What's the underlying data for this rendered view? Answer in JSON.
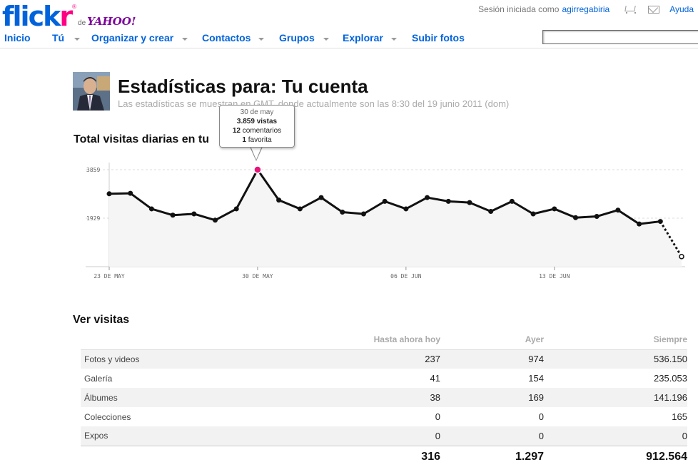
{
  "header": {
    "logo_flickr_f": "flick",
    "logo_flickr_r": "r",
    "logo_reg": "®",
    "logo_de": "de",
    "logo_yahoo": "YAHOO!",
    "session_text": "Sesión iniciada como",
    "username": "agirregabiria",
    "help": "Ayuda",
    "cart_icon": "cart-icon",
    "mail_icon": "mail-icon"
  },
  "nav": {
    "items": [
      {
        "label": "Inicio",
        "dropdown": false
      },
      {
        "label": "Tú",
        "dropdown": true
      },
      {
        "label": "Organizar y crear",
        "dropdown": true
      },
      {
        "label": "Contactos",
        "dropdown": true
      },
      {
        "label": "Grupos",
        "dropdown": true
      },
      {
        "label": "Explorar",
        "dropdown": true
      },
      {
        "label": "Subir fotos",
        "dropdown": false
      }
    ],
    "search_value": ""
  },
  "page": {
    "title": "Estadísticas para: Tu cuenta",
    "subtitle": "Las estadísticas se muestran en GMT, donde actualmente son las 8:30 del 19 junio 2011 (dom)",
    "chart_section_title": "Total visitas diarias en tu",
    "table_section_title": "Ver visitas"
  },
  "tooltip": {
    "date": "30 de may",
    "views_num": "3.859",
    "views_label": "vistas",
    "comments_num": "12",
    "comments_label": "comentarios",
    "favs_num": "1",
    "favs_label": "favorita"
  },
  "chart_data": {
    "type": "line",
    "x": [
      "23 may",
      "24 may",
      "25 may",
      "26 may",
      "27 may",
      "28 may",
      "29 may",
      "30 may",
      "31 may",
      "1 jun",
      "2 jun",
      "3 jun",
      "4 jun",
      "5 jun",
      "6 jun",
      "7 jun",
      "8 jun",
      "9 jun",
      "10 jun",
      "11 jun",
      "12 jun",
      "13 jun",
      "14 jun",
      "15 jun",
      "16 jun",
      "17 jun",
      "18 jun",
      "19 jun"
    ],
    "values": [
      2900,
      2920,
      2300,
      2050,
      2100,
      1850,
      2300,
      3859,
      2650,
      2300,
      2750,
      2170,
      2100,
      2600,
      2300,
      2750,
      2600,
      2550,
      2200,
      2600,
      2100,
      2300,
      1950,
      2000,
      2250,
      1700,
      1800,
      400
    ],
    "y_ticks": [
      "1929",
      "3859"
    ],
    "x_tick_labels": [
      "23 DE MAY",
      "30 DE MAY",
      "06 DE JUN",
      "13 DE JUN"
    ],
    "ylim": [
      0,
      3859
    ],
    "highlight_index": 7,
    "line_color": "#111111",
    "highlight_color": "#e8147a",
    "fill_color": "#f5f5f5",
    "grid": true
  },
  "table": {
    "headers": [
      "",
      "Hasta ahora hoy",
      "Ayer",
      "Siempre"
    ],
    "rows": [
      {
        "label": "Fotos y videos",
        "today": "237",
        "yesterday": "974",
        "always": "536.150"
      },
      {
        "label": "Galería",
        "today": "41",
        "yesterday": "154",
        "always": "235.053"
      },
      {
        "label": "Álbumes",
        "today": "38",
        "yesterday": "169",
        "always": "141.196"
      },
      {
        "label": "Colecciones",
        "today": "0",
        "yesterday": "0",
        "always": "165"
      },
      {
        "label": "Expos",
        "today": "0",
        "yesterday": "0",
        "always": "0"
      }
    ],
    "totals": {
      "today": "316",
      "yesterday": "1.297",
      "always": "912.564"
    }
  }
}
